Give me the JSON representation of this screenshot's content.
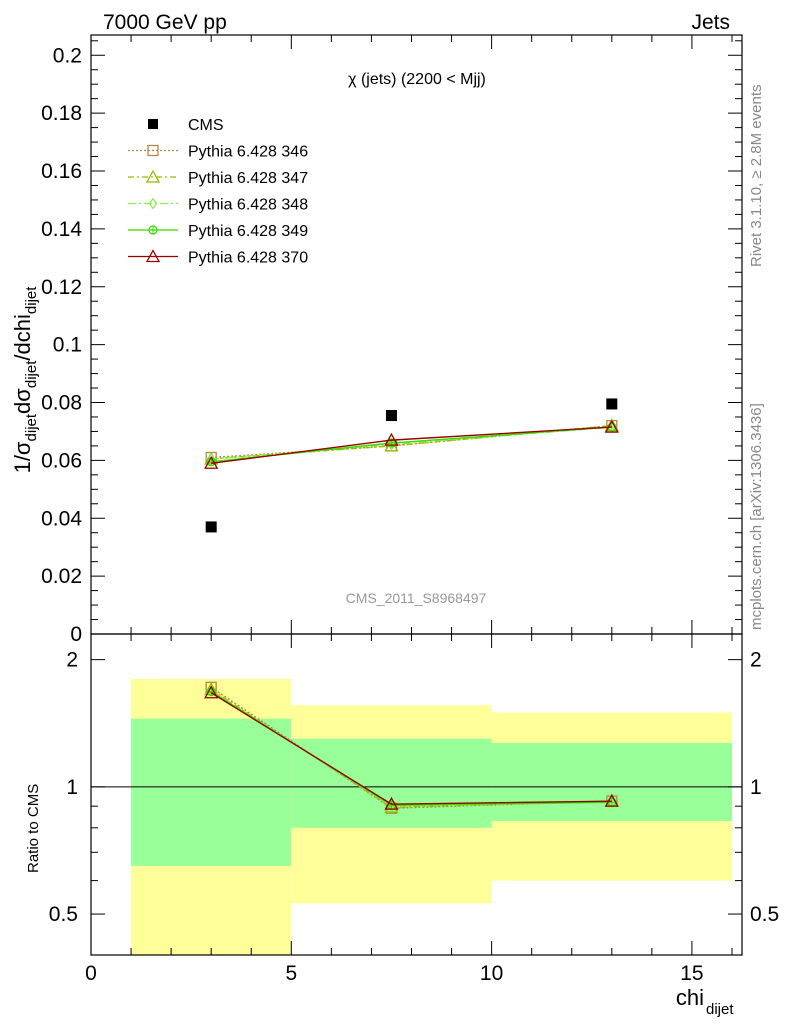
{
  "header": {
    "left": "7000 GeV pp",
    "right": "Jets"
  },
  "side_labels": {
    "rivet": "Rivet 3.1.10, ≥ 2.8M events",
    "mcplots": "mcplots.cern.ch [arXiv:1306.3436]"
  },
  "chart_data": {
    "type": "scatter",
    "title": "χ (jets) (2200 < Mjj)",
    "analysis_label": "CMS_2011_S8968497",
    "xlabel_main": "chi",
    "xlabel_sub": "dijet",
    "xlim": [
      0,
      16.25
    ],
    "x_ticks": [
      "0",
      "5",
      "10",
      "15"
    ],
    "x_tick_values": [
      0,
      5,
      10,
      15
    ],
    "top_panel": {
      "ylabel": "1/σ dijet dσ dijet /dchi dijet",
      "ylim": [
        0,
        0.207
      ],
      "y_ticks": [
        "0",
        "0.02",
        "0.04",
        "0.06",
        "0.08",
        "0.1",
        "0.12",
        "0.14",
        "0.16",
        "0.18",
        "0.2"
      ],
      "y_tick_values": [
        0,
        0.02,
        0.04,
        0.06,
        0.08,
        0.1,
        0.12,
        0.14,
        0.16,
        0.18,
        0.2
      ]
    },
    "bottom_panel": {
      "ylabel": "Ratio to CMS",
      "ylim": [
        0.4,
        2.3
      ],
      "y_ticks": [
        "0.5",
        "1",
        "2"
      ],
      "y_tick_values": [
        0.5,
        1,
        2
      ],
      "log_scale": true,
      "bands": [
        {
          "x0": 1,
          "x1": 5,
          "yellow": [
            0.35,
            1.8
          ],
          "green": [
            0.65,
            1.45
          ]
        },
        {
          "x0": 5,
          "x1": 10,
          "yellow": [
            0.53,
            1.56
          ],
          "green": [
            0.8,
            1.3
          ]
        },
        {
          "x0": 10,
          "x1": 16,
          "yellow": [
            0.6,
            1.5
          ],
          "green": [
            0.83,
            1.27
          ]
        }
      ]
    },
    "legend": [
      "CMS",
      "Pythia 6.428 346",
      "Pythia 6.428 347",
      "Pythia 6.428 348",
      "Pythia 6.428 349",
      "Pythia 6.428 370"
    ],
    "x": [
      3,
      7.5,
      13
    ],
    "series": [
      {
        "name": "CMS",
        "color": "#000000",
        "marker": "square-filled",
        "dash": "none",
        "values": [
          0.037,
          0.0755,
          0.0795
        ],
        "ratio": [
          1,
          1,
          1
        ]
      },
      {
        "name": "Pythia 6.428 346",
        "color": "#b8864b",
        "marker": "square-open",
        "dash": "2,2",
        "values": [
          0.061,
          0.065,
          0.072
        ],
        "ratio": [
          1.72,
          0.89,
          0.925
        ]
      },
      {
        "name": "Pythia 6.428 347",
        "color": "#99bb00",
        "marker": "triangle-open",
        "dash": "6,3,2,3",
        "values": [
          0.0605,
          0.065,
          0.072
        ],
        "ratio": [
          1.7,
          0.895,
          0.925
        ]
      },
      {
        "name": "Pythia 6.428 348",
        "color": "#88ee44",
        "marker": "diamond-open",
        "dash": "8,3,2,3",
        "values": [
          0.0605,
          0.0655,
          0.0715
        ],
        "ratio": [
          1.69,
          0.9,
          0.92
        ]
      },
      {
        "name": "Pythia 6.428 349",
        "color": "#33dd00",
        "marker": "circle-cross",
        "dash": "none",
        "values": [
          0.0595,
          0.066,
          0.0715
        ],
        "ratio": [
          1.68,
          0.905,
          0.92
        ]
      },
      {
        "name": "Pythia 6.428 370",
        "color": "#990000",
        "marker": "triangle-open",
        "dash": "none",
        "values": [
          0.059,
          0.067,
          0.0715
        ],
        "ratio": [
          1.67,
          0.91,
          0.925
        ]
      }
    ]
  }
}
